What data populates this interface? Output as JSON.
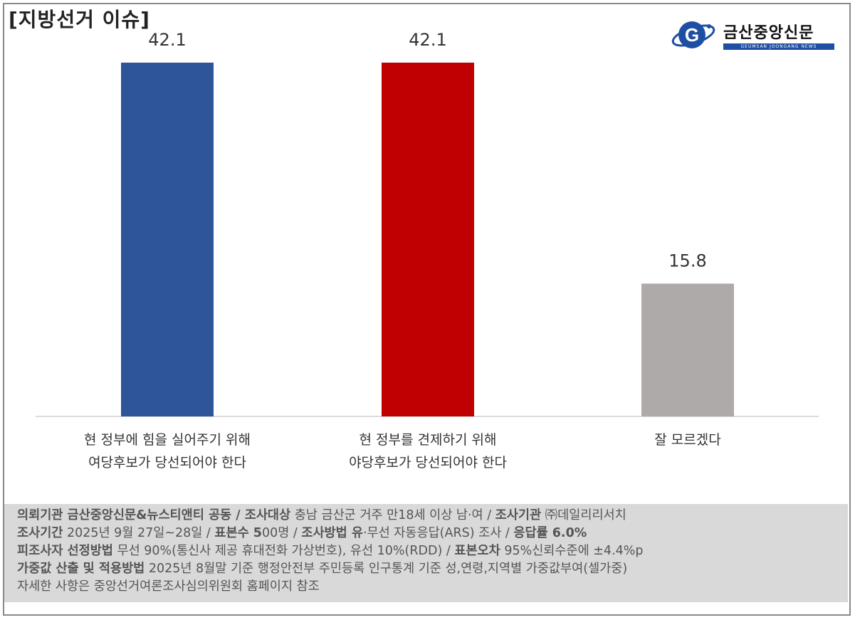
{
  "header": {
    "title": "[지방선거 이슈]"
  },
  "logo": {
    "name": "금산중앙신문",
    "sub": "GEUMSAN JOONGANG NEWS",
    "icon": "g-globe-logo"
  },
  "chart_data": {
    "type": "bar",
    "categories": [
      [
        "현 정부에 힘을 실어주기 위해",
        "여당후보가 당선되어야 한다"
      ],
      [
        "현 정부를 견제하기 위해",
        "야당후보가 당선되어야 한다"
      ],
      [
        "잘 모르겠다"
      ]
    ],
    "values": [
      42.1,
      42.1,
      15.8
    ],
    "value_labels": [
      "42.1",
      "42.1",
      "15.8"
    ],
    "colors": [
      "#2e5597",
      "#c00000",
      "#aeaaaa"
    ],
    "ylim": [
      0,
      42.1
    ],
    "grid": false
  },
  "footer": {
    "lines": [
      [
        {
          "t": "의뢰기관 금산중앙신문&뉴스티앤티 공동",
          "b": true
        },
        {
          "t": " / ",
          "b": true
        },
        {
          "t": "조사대상",
          "b": true
        },
        {
          "t": " 충남 금산군 거주 만18세 이상 남·여 /  ",
          "b": false
        },
        {
          "t": "조사기관",
          "b": true
        },
        {
          "t": " ㈜데일리리서치",
          "b": false
        }
      ],
      [
        {
          "t": "조사기간",
          "b": true
        },
        {
          "t": " 2025년 9월 27일~28일 / ",
          "b": false
        },
        {
          "t": "표본수 5",
          "b": true
        },
        {
          "t": "00명 / ",
          "b": false
        },
        {
          "t": "조사방법 유",
          "b": true
        },
        {
          "t": "·무선 자동응답(ARS) 조사 / ",
          "b": false
        },
        {
          "t": "응답률 6.0%",
          "b": true
        }
      ],
      [
        {
          "t": "피조사자 선정방법",
          "b": true
        },
        {
          "t": " 무선 90%(통신사 제공 휴대전화 가상번호), 유선 10%(RDD) / ",
          "b": false
        },
        {
          "t": "표본오차",
          "b": true
        },
        {
          "t": " 95%신뢰수준에 ±4.4%p",
          "b": false
        }
      ],
      [
        {
          "t": "가중값 산출 및 적용방법",
          "b": true
        },
        {
          "t": " 2025년 8월말 기준 행정안전부 주민등록 인구통계 기준 성,연령,지역별 가중값부여(셀가중)",
          "b": false
        }
      ],
      [
        {
          "t": "자세한 사항은 중앙선거여론조사심의위원회 홈페이지 참조",
          "b": false
        }
      ]
    ]
  }
}
